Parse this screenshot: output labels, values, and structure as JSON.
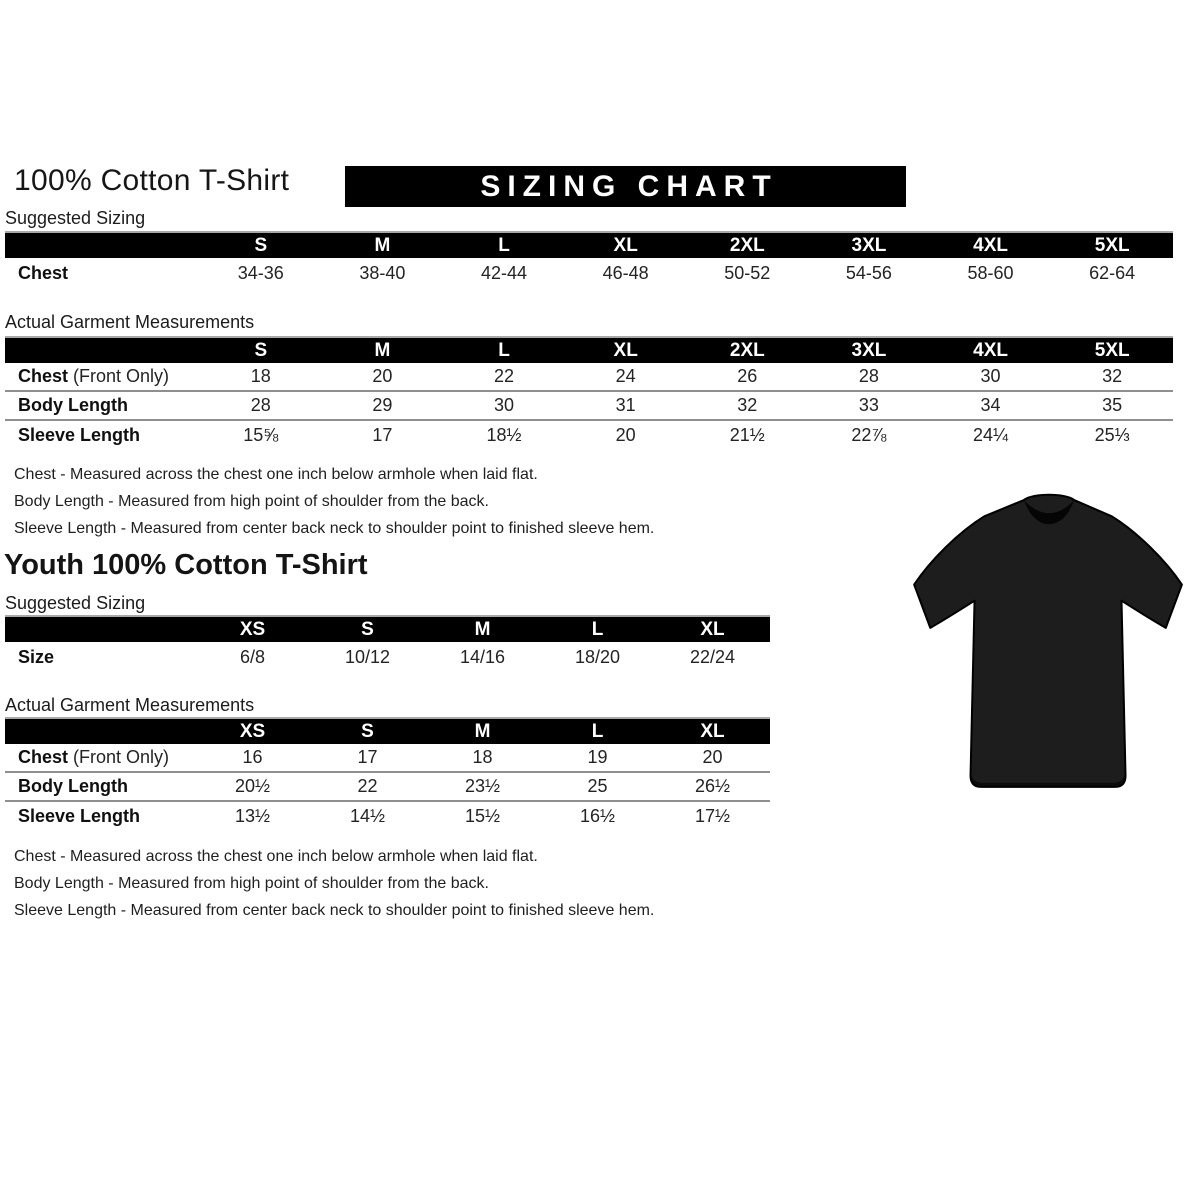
{
  "adult": {
    "title": "100% Cotton T-Shirt",
    "banner": "SIZING CHART",
    "suggested_label": "Suggested Sizing",
    "actual_label": "Actual Garment Measurements",
    "sizes": [
      "S",
      "M",
      "L",
      "XL",
      "2XL",
      "3XL",
      "4XL",
      "5XL"
    ],
    "suggested_row": {
      "label": "Chest",
      "suffix": "",
      "values": [
        "34-36",
        "38-40",
        "42-44",
        "46-48",
        "50-52",
        "54-56",
        "58-60",
        "62-64"
      ]
    },
    "actual_rows": [
      {
        "label": "Chest",
        "suffix": " (Front Only)",
        "values": [
          "18",
          "20",
          "22",
          "24",
          "26",
          "28",
          "30",
          "32"
        ]
      },
      {
        "label": "Body Length",
        "suffix": "",
        "values": [
          "28",
          "29",
          "30",
          "31",
          "32",
          "33",
          "34",
          "35"
        ]
      },
      {
        "label": "Sleeve Length",
        "suffix": "",
        "values": [
          "15⅝",
          "17",
          "18½",
          "20",
          "21½",
          "22⅞",
          "24¼",
          "25⅓"
        ]
      }
    ],
    "notes": [
      "Chest - Measured across the chest one inch below armhole when laid flat.",
      "Body Length - Measured from high point of shoulder from the back.",
      "Sleeve Length - Measured from center back neck to shoulder point to finished sleeve hem."
    ]
  },
  "youth": {
    "title": "Youth 100% Cotton T-Shirt",
    "suggested_label": "Suggested Sizing",
    "actual_label": "Actual Garment Measurements",
    "sizes": [
      "XS",
      "S",
      "M",
      "L",
      "XL"
    ],
    "suggested_row": {
      "label": "Size",
      "suffix": "",
      "values": [
        "6/8",
        "10/12",
        "14/16",
        "18/20",
        "22/24"
      ]
    },
    "actual_rows": [
      {
        "label": "Chest",
        "suffix": " (Front Only)",
        "values": [
          "16",
          "17",
          "18",
          "19",
          "20"
        ]
      },
      {
        "label": "Body Length",
        "suffix": "",
        "values": [
          "20½",
          "22",
          "23½",
          "25",
          "26½"
        ]
      },
      {
        "label": "Sleeve Length",
        "suffix": "",
        "values": [
          "13½",
          "14½",
          "15½",
          "16½",
          "17½"
        ]
      }
    ],
    "notes": [
      "Chest - Measured across the chest one inch below armhole when laid flat.",
      "Body Length - Measured from high point of shoulder from the back.",
      "Sleeve Length - Measured from center back neck to shoulder point to finished sleeve hem."
    ]
  },
  "tshirt": {
    "description": "blank black short-sleeve crew-neck t-shirt",
    "color": "#1d1d1d"
  },
  "colors": {
    "banner_bg": "#000000",
    "header_bg": "#000000",
    "header_text": "#ffffff",
    "body_text": "#1a1a1a",
    "separator": "#8f8f8f"
  }
}
